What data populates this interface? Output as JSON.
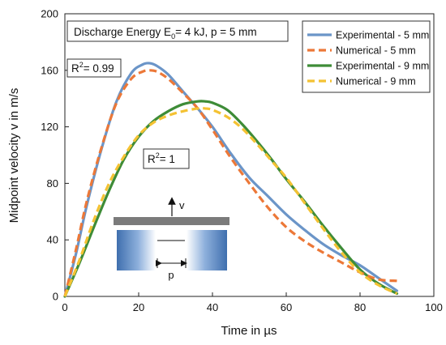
{
  "chart_data": {
    "type": "line",
    "xlabel": "Time in µs",
    "ylabel": "Midpoint velocity v in m/s",
    "xlim": [
      0,
      100
    ],
    "ylim": [
      0,
      200
    ],
    "x_ticks": [
      "0",
      "20",
      "40",
      "60",
      "80",
      "100"
    ],
    "y_ticks": [
      "0",
      "40",
      "80",
      "120",
      "160",
      "200"
    ],
    "grid": false,
    "legend_position": "top-right",
    "annotations": {
      "condition_prefix": "Discharge Energy E",
      "condition_sub": "0",
      "condition_suffix": "= 4 kJ, p = 5 mm",
      "r2_a_prefix": "R",
      "r2_a_sup": "2",
      "r2_a_value": "= 0.99",
      "r2_b_prefix": "R",
      "r2_b_sup": "2",
      "r2_b_value": "= 1",
      "inset_velocity": "v",
      "inset_gap": "p"
    },
    "series": [
      {
        "name": "Experimental - 5 mm",
        "color": "#6b95c8",
        "style": "solid",
        "x": [
          0,
          3,
          6,
          10,
          14,
          18,
          21,
          23,
          25,
          28,
          32,
          36,
          40,
          45,
          50,
          55,
          60,
          65,
          70,
          75,
          80,
          85,
          90
        ],
        "y": [
          0,
          30,
          65,
          105,
          138,
          158,
          164,
          165,
          163,
          157,
          145,
          133,
          120,
          101,
          84,
          71,
          58,
          47,
          37,
          29,
          22,
          13,
          4
        ]
      },
      {
        "name": "Numerical - 5 mm",
        "color": "#ec7838",
        "style": "dashed",
        "x": [
          0,
          3,
          6,
          10,
          14,
          18,
          21,
          23,
          25,
          28,
          32,
          36,
          40,
          45,
          50,
          55,
          60,
          65,
          70,
          75,
          80,
          85,
          90
        ],
        "y": [
          0,
          33,
          68,
          106,
          137,
          154,
          159,
          160,
          159,
          154,
          144,
          133,
          118,
          98,
          80,
          63,
          49,
          39,
          31,
          24,
          17,
          12,
          11
        ]
      },
      {
        "name": "Experimental - 9 mm",
        "color": "#3e8c37",
        "style": "solid",
        "x": [
          0,
          4,
          8,
          12,
          16,
          20,
          24,
          28,
          32,
          36,
          38,
          40,
          44,
          48,
          52,
          56,
          60,
          65,
          70,
          75,
          80,
          85,
          90
        ],
        "y": [
          0,
          24,
          50,
          75,
          97,
          113,
          124,
          131,
          136,
          138,
          138,
          137,
          132,
          122,
          110,
          97,
          83,
          67,
          50,
          34,
          19,
          9,
          2
        ]
      },
      {
        "name": "Numerical - 9 mm",
        "color": "#f4c233",
        "style": "dashed",
        "x": [
          0,
          4,
          8,
          12,
          16,
          20,
          24,
          28,
          32,
          36,
          38,
          40,
          44,
          48,
          52,
          56,
          60,
          65,
          70,
          75,
          80,
          85,
          90
        ],
        "y": [
          0,
          26,
          55,
          80,
          99,
          114,
          123,
          128,
          131,
          133,
          133,
          132,
          127,
          119,
          108,
          96,
          84,
          66,
          48,
          31,
          17,
          8,
          2
        ]
      }
    ]
  }
}
